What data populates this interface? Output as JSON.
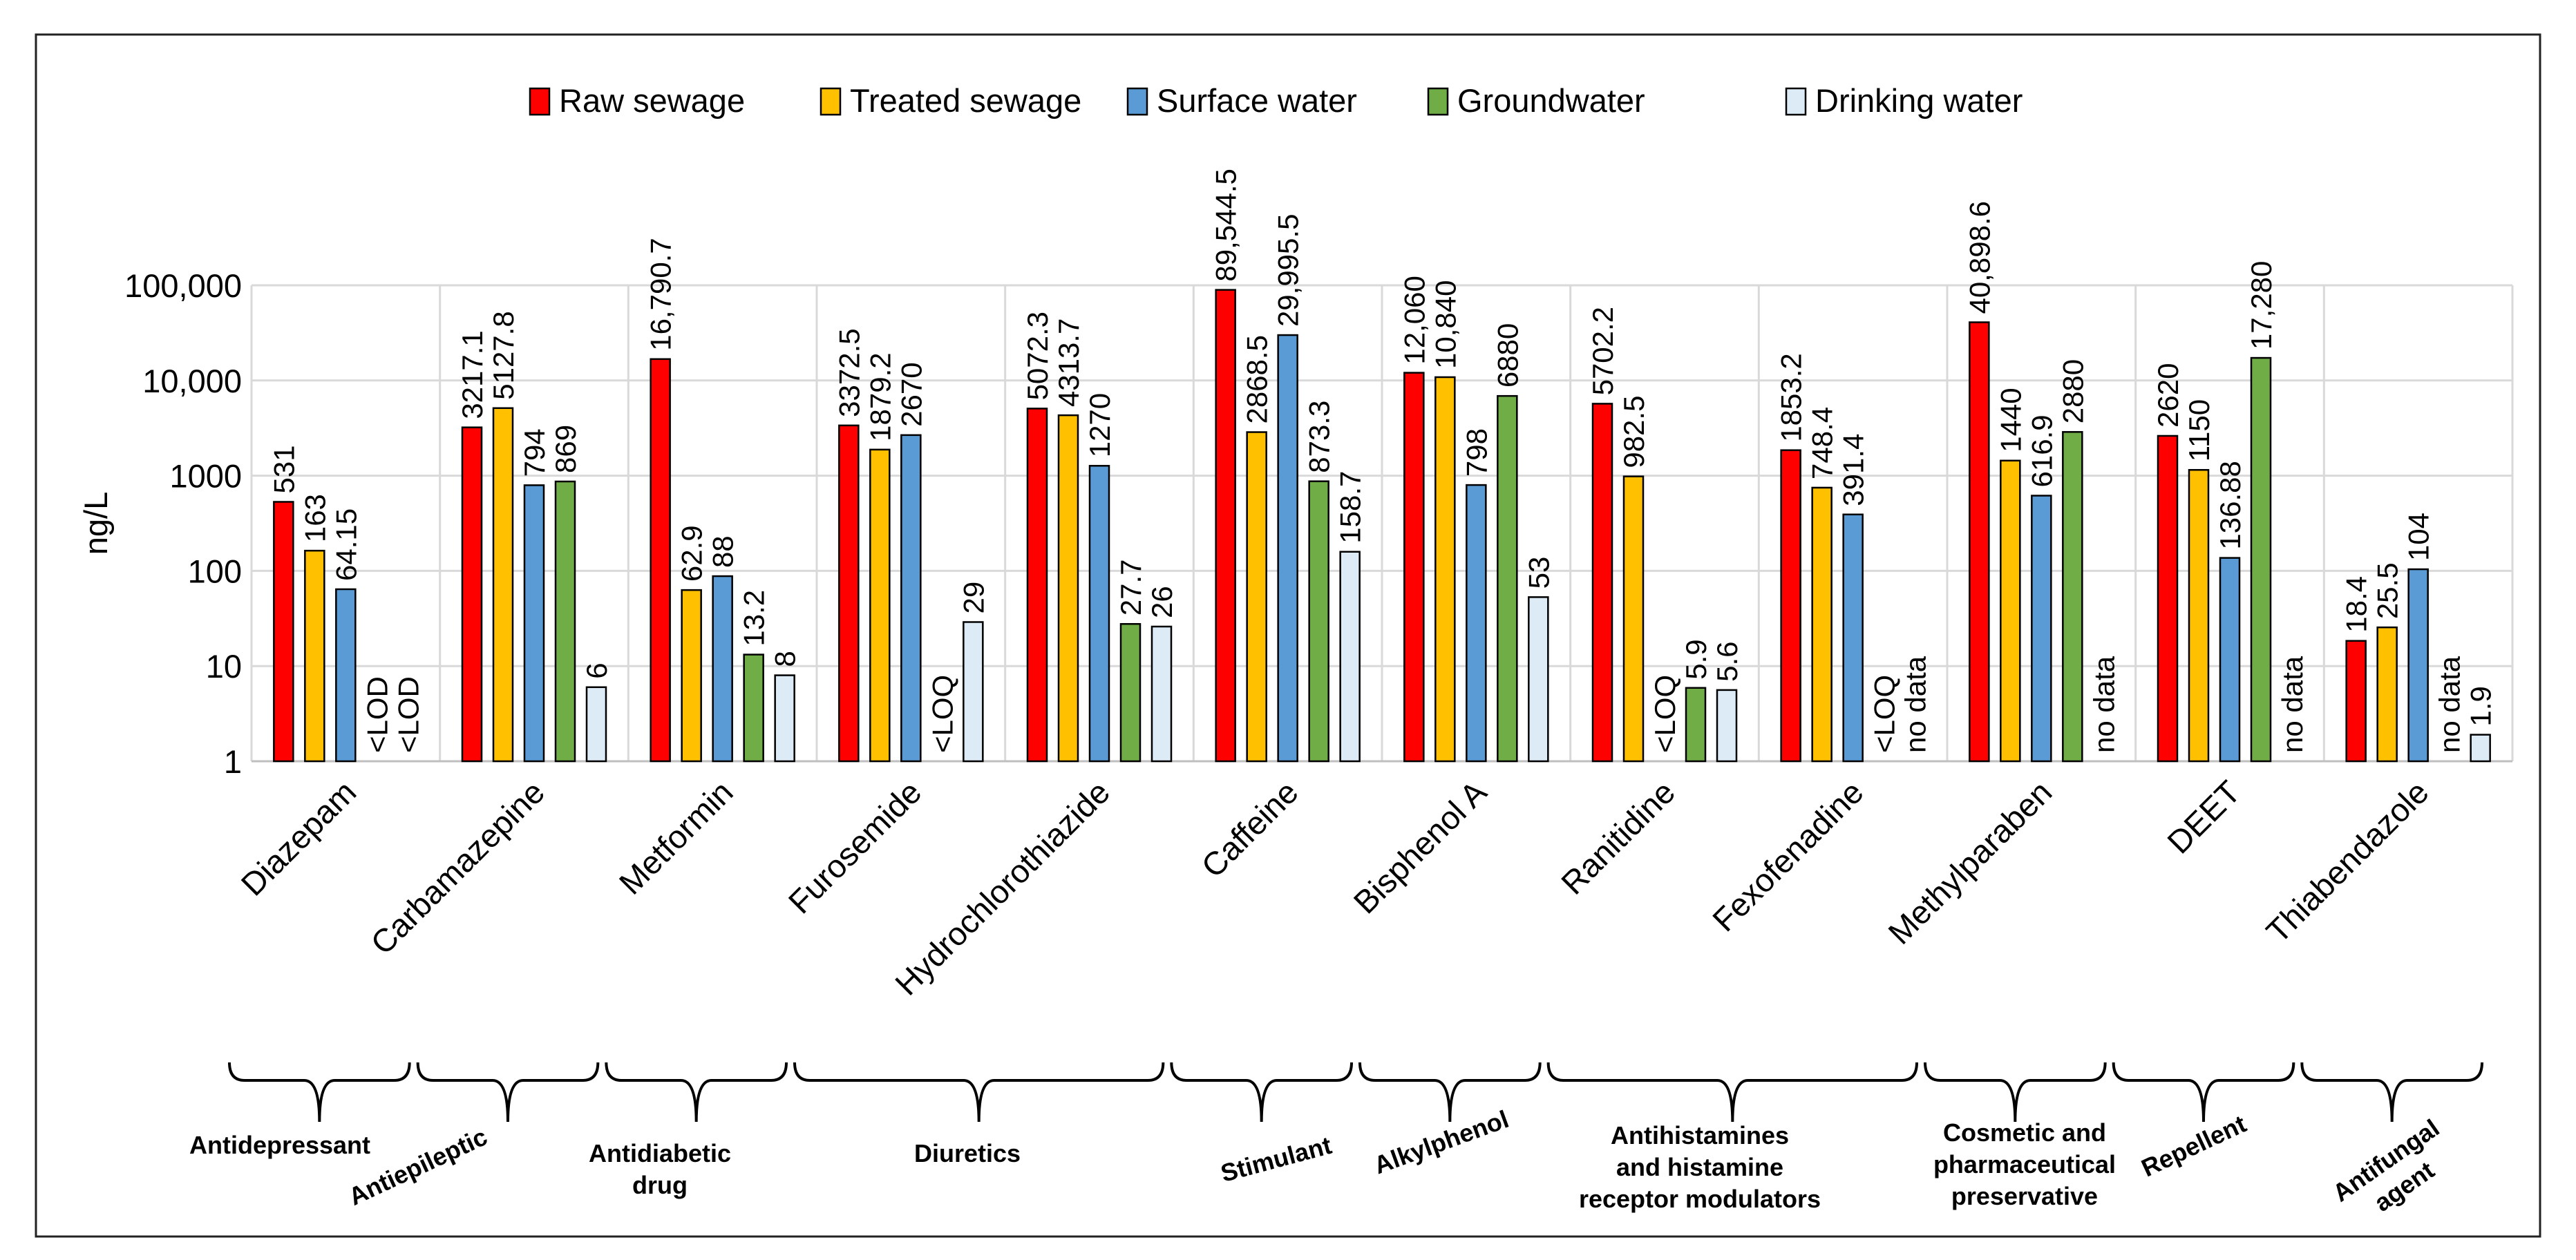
{
  "chart_data": {
    "type": "bar",
    "scale": "log",
    "ylabel": "ng/L",
    "ylim": [
      1,
      100000
    ],
    "yticks": [
      {
        "value": 1,
        "label": "1"
      },
      {
        "value": 10,
        "label": "10"
      },
      {
        "value": 100,
        "label": "100"
      },
      {
        "value": 1000,
        "label": "1000"
      },
      {
        "value": 10000,
        "label": "10,000"
      },
      {
        "value": 100000,
        "label": "100,000"
      }
    ],
    "legend_position": "top",
    "categories": [
      "Diazepam",
      "Carbamazepine",
      "Metformin",
      "Furosemide",
      "Hydrochlorothiazide",
      "Caffeine",
      "Bisphenol A",
      "Ranitidine",
      "Fexofenadine",
      "Methylparaben",
      "DEET",
      "Thiabendazole"
    ],
    "series": [
      {
        "name": "Raw sewage",
        "color": "#ff0000",
        "values": [
          531,
          3217.1,
          16790.7,
          3372.5,
          5072.3,
          89544.5,
          12060,
          5702.2,
          1853.2,
          40898.6,
          2620,
          18.4
        ],
        "labels": [
          "531",
          "3217.1",
          "16,790.7",
          "3372.5",
          "5072.3",
          "89,544.5",
          "12,060",
          "5702.2",
          "1853.2",
          "40,898.6",
          "2620",
          "18.4"
        ]
      },
      {
        "name": "Treated sewage",
        "color": "#ffc000",
        "values": [
          163,
          5127.8,
          62.9,
          1879.2,
          4313.7,
          2868.5,
          10840,
          982.5,
          748.4,
          1440,
          1150,
          25.5
        ],
        "labels": [
          "163",
          "5127.8",
          "62.9",
          "1879.2",
          "4313.7",
          "2868.5",
          "10,840",
          "982.5",
          "748.4",
          "1440",
          "1150",
          "25.5"
        ]
      },
      {
        "name": "Surface water",
        "color": "#5b9bd5",
        "values": [
          64.15,
          794,
          88,
          2670,
          1270,
          29995.5,
          798,
          null,
          391.4,
          616.9,
          136.88,
          104
        ],
        "labels": [
          "64.15",
          "794",
          "88",
          "2670",
          "1270",
          "29,995.5",
          "798",
          "<LOQ",
          "391.4",
          "616.9",
          "136.88",
          "104"
        ]
      },
      {
        "name": "Groundwater",
        "color": "#70ad47",
        "values": [
          null,
          869,
          13.2,
          null,
          27.7,
          873.3,
          6880,
          5.9,
          null,
          2880,
          17280,
          null
        ],
        "labels": [
          "<LOD",
          "869",
          "13.2",
          "<LOQ",
          "27.7",
          "873.3",
          "6880",
          "5.9",
          "<LOQ",
          "2880",
          "17,280",
          "no data"
        ]
      },
      {
        "name": "Drinking water",
        "color": "#ddebf7",
        "values": [
          null,
          6,
          8,
          29,
          26,
          158.7,
          53,
          5.6,
          null,
          null,
          null,
          1.9
        ],
        "labels": [
          "<LOD",
          "6",
          "8",
          "29",
          "26",
          "158.7",
          "53",
          "5.6",
          "no data",
          "no data",
          "no data",
          "1.9"
        ]
      }
    ],
    "groups": [
      {
        "label": [
          "Antidepressant"
        ],
        "span": [
          0,
          0
        ]
      },
      {
        "label": [
          "Antiepileptic"
        ],
        "span": [
          1,
          1
        ]
      },
      {
        "label": [
          "Antidiabetic",
          "drug"
        ],
        "span": [
          2,
          2
        ]
      },
      {
        "label": [
          "Diuretics"
        ],
        "span": [
          3,
          4
        ]
      },
      {
        "label": [
          "Stimulant"
        ],
        "span": [
          5,
          5
        ]
      },
      {
        "label": [
          "Alkylphenol"
        ],
        "span": [
          6,
          6
        ]
      },
      {
        "label": [
          "Antihistamines",
          "and histamine",
          "receptor modulators"
        ],
        "span": [
          7,
          8
        ]
      },
      {
        "label": [
          "Cosmetic and",
          "pharmaceutical",
          "preservative"
        ],
        "span": [
          9,
          9
        ]
      },
      {
        "label": [
          "Repellent"
        ],
        "span": [
          10,
          10
        ]
      },
      {
        "label": [
          "Antifungal",
          "agent"
        ],
        "span": [
          11,
          11
        ]
      }
    ]
  }
}
